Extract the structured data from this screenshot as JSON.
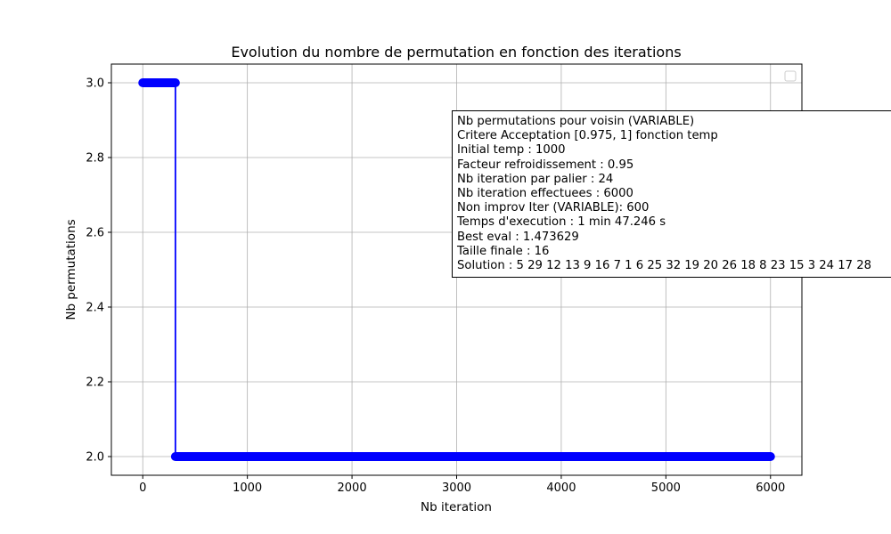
{
  "chart_data": {
    "type": "line",
    "title": "Evolution du nombre de permutation en fonction des iterations",
    "xlabel": "Nb iteration",
    "ylabel": "Nb permutations",
    "xlim": [
      -300,
      6300
    ],
    "ylim": [
      1.95,
      3.05
    ],
    "xticks": [
      0,
      1000,
      2000,
      3000,
      4000,
      5000,
      6000
    ],
    "xtick_labels": [
      "0",
      "1000",
      "2000",
      "3000",
      "4000",
      "5000",
      "6000"
    ],
    "yticks": [
      2.0,
      2.2,
      2.4,
      2.6,
      2.8,
      3.0
    ],
    "ytick_labels": [
      "2.0",
      "2.2",
      "2.4",
      "2.6",
      "2.8",
      "3.0"
    ],
    "grid": true,
    "legend": "top-right, empty",
    "series": [
      {
        "color": "#0000ff",
        "marker": "circle",
        "points": [
          [
            0,
            3
          ],
          [
            312,
            3
          ],
          [
            312,
            2
          ],
          [
            6000,
            2
          ]
        ]
      }
    ],
    "annotation_lines": [
      "Nb permutations pour voisin (VARIABLE)",
      "Critere Acceptation [0.975, 1] fonction temp",
      "Initial temp : 1000",
      "Facteur refroidissement : 0.95",
      "Nb iteration par palier : 24",
      "Nb iteration effectuees : 6000",
      "Non improv Iter (VARIABLE): 600",
      "Temps d'execution : 1 min 47.246 s",
      "Best eval : 1.473629",
      "Taille finale : 16",
      "Solution : 5 29 12 13 9 16 7 1 6 25 32 19 20 26 18 8 23 15 3 24 17 28"
    ]
  }
}
